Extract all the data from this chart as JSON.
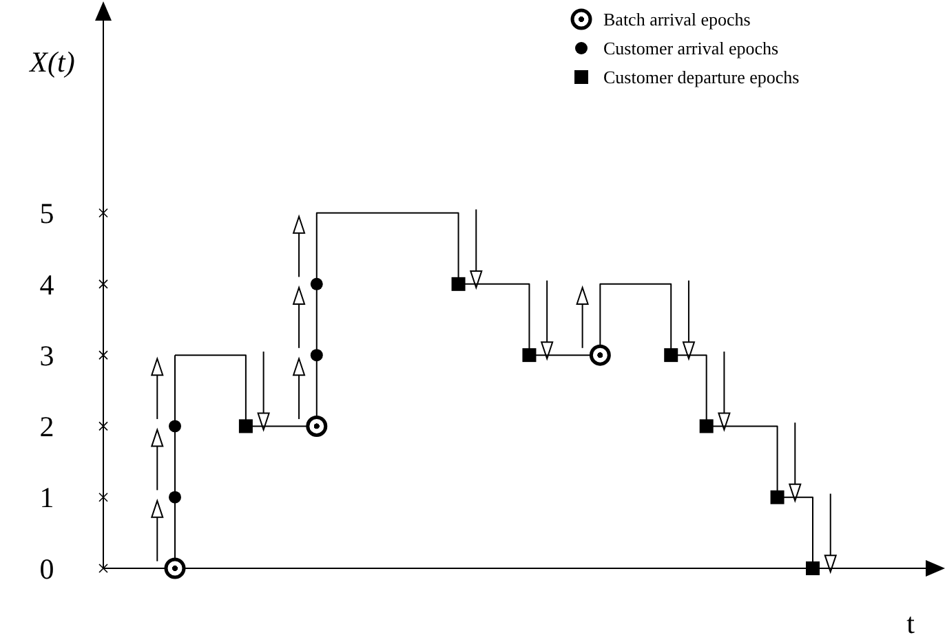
{
  "chart_data": {
    "type": "step",
    "ylabel": "X(t)",
    "xlabel": "t",
    "ylim": [
      0,
      7.9
    ],
    "yticks": [
      0,
      1,
      2,
      3,
      4,
      5
    ],
    "tick_labels": "y",
    "legend": "top right",
    "categories": [
      null,
      null,
      null,
      null,
      null,
      null,
      null,
      null,
      null,
      null,
      null,
      null,
      null,
      null,
      null,
      null,
      null,
      null,
      null
    ],
    "series": [
      {
        "color": "#000000",
        "values": [
          3,
          3,
          2,
          2,
          5,
          5,
          5,
          5,
          4,
          4,
          3,
          3,
          4,
          4,
          3,
          2,
          2,
          1,
          0
        ]
      },
      {
        "type": "scatter",
        "name": "Batch arrival epochs",
        "color": "#000000",
        "marker": "circle",
        "values": [
          0,
          null,
          null,
          null,
          2,
          null,
          null,
          null,
          null,
          null,
          null,
          null,
          3,
          null,
          null,
          null,
          null,
          null,
          null
        ]
      },
      {
        "type": "scatter",
        "name": "Customer arrival epochs",
        "color": "#000000",
        "marker": "circle",
        "values": [
          1,
          null,
          null,
          null,
          3,
          null,
          null,
          null,
          null,
          null,
          null,
          null,
          null,
          null,
          null,
          null,
          null,
          null,
          null
        ]
      },
      {
        "type": "scatter",
        "color": "#000000",
        "marker": "circle",
        "values": [
          2,
          null,
          null,
          null,
          4,
          null,
          null,
          null,
          null,
          null,
          null,
          null,
          null,
          null,
          null,
          null,
          null,
          null,
          null
        ]
      },
      {
        "type": "scatter",
        "name": "Customer departure epochs",
        "color": "#000000",
        "marker": "square",
        "values": [
          null,
          null,
          2,
          null,
          null,
          null,
          null,
          null,
          4,
          null,
          3,
          null,
          null,
          null,
          3,
          2,
          null,
          1,
          0
        ]
      }
    ]
  }
}
